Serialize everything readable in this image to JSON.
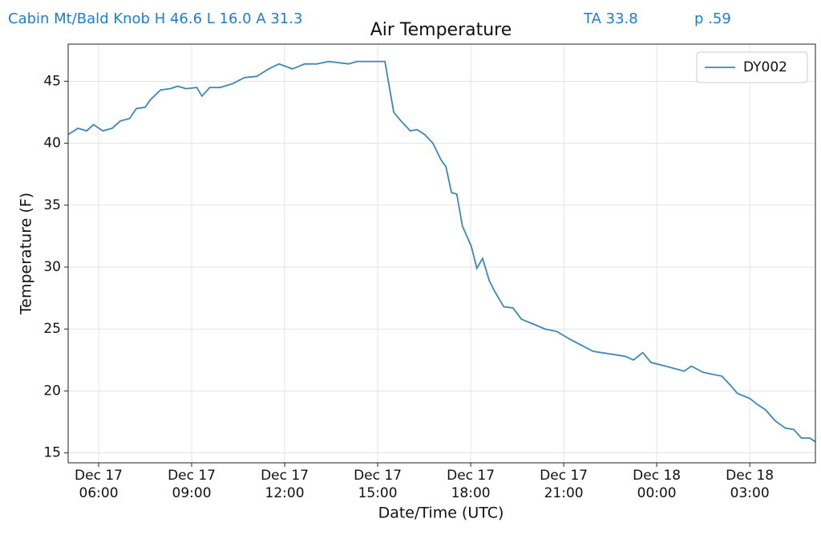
{
  "chart_data": {
    "type": "line",
    "header": [
      "Cabin Mt/Bald Knob H 46.6 L 16.0 A 31.3",
      "TA 33.8",
      "p .59"
    ],
    "title": "Air Temperature",
    "xlabel": "Date/Time (UTC)",
    "ylabel": "Temperature (F)",
    "x": [
      "Dec 17 05:01",
      "Dec 17 05:20",
      "Dec 17 05:37",
      "Dec 17 05:50",
      "Dec 17 06:08",
      "Dec 17 06:26",
      "Dec 17 06:42",
      "Dec 17 07:00",
      "Dec 17 07:13",
      "Dec 17 07:30",
      "Dec 17 07:40",
      "Dec 17 08:00",
      "Dec 17 08:18",
      "Dec 17 08:33",
      "Dec 17 08:49",
      "Dec 17 09:10",
      "Dec 17 09:20",
      "Dec 17 09:35",
      "Dec 17 09:55",
      "Dec 17 10:19",
      "Dec 17 10:42",
      "Dec 17 11:06",
      "Dec 17 11:29",
      "Dec 17 11:49",
      "Dec 17 12:15",
      "Dec 17 12:39",
      "Dec 17 13:02",
      "Dec 17 13:25",
      "Dec 17 14:04",
      "Dec 17 14:20",
      "Dec 17 15:14",
      "Dec 17 15:31",
      "Dec 17 15:45",
      "Dec 17 16:03",
      "Dec 17 16:16",
      "Dec 17 16:31",
      "Dec 17 16:47",
      "Dec 17 17:02",
      "Dec 17 17:12",
      "Dec 17 17:23",
      "Dec 17 17:33",
      "Dec 17 17:44",
      "Dec 17 18:01",
      "Dec 17 18:12",
      "Dec 17 18:23",
      "Dec 17 18:36",
      "Dec 17 18:47",
      "Dec 17 19:04",
      "Dec 17 19:22",
      "Dec 17 19:38",
      "Dec 17 20:01",
      "Dec 17 20:24",
      "Dec 17 20:47",
      "Dec 17 21:11",
      "Dec 17 21:34",
      "Dec 17 21:57",
      "Dec 17 22:28",
      "Dec 17 22:59",
      "Dec 17 23:15",
      "Dec 17 23:33",
      "Dec 17 23:49",
      "Dec 18 00:17",
      "Dec 18 00:53",
      "Dec 18 01:07",
      "Dec 18 01:30",
      "Dec 18 02:06",
      "Dec 18 02:24",
      "Dec 18 02:36",
      "Dec 18 03:00",
      "Dec 18 03:15",
      "Dec 18 03:30",
      "Dec 18 03:49",
      "Dec 18 04:09",
      "Dec 18 04:25",
      "Dec 18 04:40",
      "Dec 18 04:56",
      "Dec 18 05:07"
    ],
    "series": [
      {
        "name": "DY002",
        "color": "#3b87b5",
        "values": [
          40.7,
          41.2,
          41.0,
          41.5,
          41.0,
          41.2,
          41.8,
          42.0,
          42.8,
          42.9,
          43.5,
          44.3,
          44.4,
          44.6,
          44.4,
          44.5,
          43.8,
          44.5,
          44.5,
          44.8,
          45.3,
          45.4,
          46.0,
          46.4,
          46.0,
          46.4,
          46.4,
          46.6,
          46.4,
          46.6,
          46.6,
          42.5,
          41.8,
          41.0,
          41.1,
          40.7,
          40.0,
          38.7,
          38.1,
          36.0,
          35.9,
          33.3,
          31.7,
          29.9,
          30.7,
          28.9,
          28.0,
          26.8,
          26.7,
          25.8,
          25.4,
          25.0,
          24.8,
          24.2,
          23.7,
          23.2,
          23.0,
          22.8,
          22.5,
          23.1,
          22.3,
          22.0,
          21.6,
          22.0,
          21.5,
          21.2,
          20.4,
          19.8,
          19.4,
          18.9,
          18.5,
          17.6,
          17.0,
          16.9,
          16.2,
          16.2,
          15.9
        ]
      }
    ],
    "xlim": [
      "Dec 17 05:01",
      "Dec 18 05:07"
    ],
    "xticks": [
      "Dec 17 06:00",
      "Dec 17 09:00",
      "Dec 17 12:00",
      "Dec 17 15:00",
      "Dec 17 18:00",
      "Dec 17 21:00",
      "Dec 18 00:00",
      "Dec 18 03:00"
    ],
    "ylim": [
      14.2,
      48.0
    ],
    "yticks": [
      15,
      20,
      25,
      30,
      35,
      40,
      45
    ],
    "grid": true,
    "legend": "upper right"
  }
}
